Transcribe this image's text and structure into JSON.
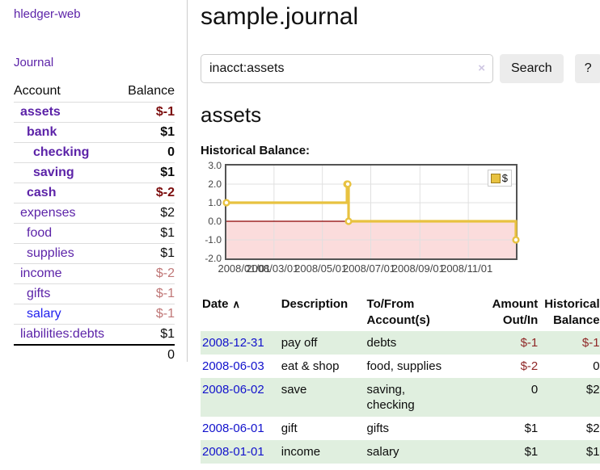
{
  "app": {
    "brand": "hledger-web",
    "nav_journal": "Journal"
  },
  "sidebar": {
    "header": {
      "account": "Account",
      "balance": "Balance"
    },
    "accounts": [
      {
        "name": "assets",
        "balance": "$-1",
        "indent": 0,
        "bold": true,
        "visited": true
      },
      {
        "name": "bank",
        "balance": "$1",
        "indent": 1,
        "bold": true,
        "visited": true
      },
      {
        "name": "checking",
        "balance": "0",
        "indent": 2,
        "bold": true,
        "visited": true
      },
      {
        "name": "saving",
        "balance": "$1",
        "indent": 2,
        "bold": true,
        "visited": true
      },
      {
        "name": "cash",
        "balance": "$-2",
        "indent": 1,
        "bold": true,
        "visited": true
      },
      {
        "name": "expenses",
        "balance": "$2",
        "indent": 0,
        "bold": false,
        "visited": true
      },
      {
        "name": "food",
        "balance": "$1",
        "indent": 1,
        "bold": false,
        "visited": true
      },
      {
        "name": "supplies",
        "balance": "$1",
        "indent": 1,
        "bold": false,
        "visited": true
      },
      {
        "name": "income",
        "balance": "$-2",
        "indent": 0,
        "bold": false,
        "visited": true
      },
      {
        "name": "gifts",
        "balance": "$-1",
        "indent": 1,
        "bold": false,
        "visited": true
      },
      {
        "name": "salary",
        "balance": "$-1",
        "indent": 1,
        "bold": false,
        "visited": false
      },
      {
        "name": "liabilities:debts",
        "balance": "$1",
        "indent": 0,
        "bold": false,
        "visited": true
      }
    ],
    "total": "0"
  },
  "header": {
    "title": "sample.journal"
  },
  "search": {
    "value": "inacct:assets",
    "clear_icon": "×",
    "button_label": "Search",
    "help_label": "?"
  },
  "account_page": {
    "heading": "assets",
    "chart_label": "Historical Balance:"
  },
  "chart_data": {
    "type": "line",
    "title": "Historical Balance:",
    "step": true,
    "x_range": [
      "2008-01-01",
      "2008-12-31"
    ],
    "y_range": [
      -2.0,
      3.0
    ],
    "y_tick_labels": [
      "3.0",
      "2.0",
      "1.0",
      "0.0",
      "-1.0",
      "-2.0"
    ],
    "y_ticks": [
      3,
      2,
      1,
      0,
      -1,
      -2
    ],
    "y_gridlines": [
      2,
      1,
      -1
    ],
    "x_tick_labels": [
      "2008/01/01",
      "2008/03/01",
      "2008/05/01",
      "2008/07/01",
      "2008/09/01",
      "2008/11/01"
    ],
    "x_tick_dates": [
      "2008-01-01",
      "2008-03-01",
      "2008-05-01",
      "2008-07-01",
      "2008-09-01",
      "2008-11-01"
    ],
    "series": [
      {
        "name": "$",
        "color": "#e8c240",
        "points": [
          [
            "2008-01-01",
            1
          ],
          [
            "2008-06-01",
            2
          ],
          [
            "2008-06-02",
            2
          ],
          [
            "2008-06-03",
            0
          ],
          [
            "2008-12-31",
            -1
          ]
        ]
      }
    ],
    "legend": [
      {
        "label": "$",
        "color": "#e8c240"
      }
    ],
    "legend_position": "top-right",
    "negative_region_fill": "#fbdcdc",
    "zero_line_color": "#8b0000",
    "grid_color": "#e0e0e0"
  },
  "register": {
    "sort_indicator": "∧",
    "columns": [
      {
        "key": "date",
        "line1": "Date",
        "line2": "",
        "align": "left"
      },
      {
        "key": "description",
        "line1": "Description",
        "line2": "",
        "align": "left"
      },
      {
        "key": "accounts",
        "line1": "To/From",
        "line2": "Account(s)",
        "align": "left"
      },
      {
        "key": "amount",
        "line1": "Amount",
        "line2": "Out/In",
        "align": "right"
      },
      {
        "key": "balance",
        "line1": "Historical",
        "line2": "Balance",
        "align": "right"
      }
    ],
    "rows": [
      {
        "date": "2008-12-31",
        "description": "pay off",
        "accounts": "debts",
        "amount": "$-1",
        "balance": "$-1"
      },
      {
        "date": "2008-06-03",
        "description": "eat & shop",
        "accounts": "food, supplies",
        "amount": "$-2",
        "balance": "0"
      },
      {
        "date": "2008-06-02",
        "description": "save",
        "accounts": "saving, checking",
        "amount": "0",
        "balance": "$2"
      },
      {
        "date": "2008-06-01",
        "description": "gift",
        "accounts": "gifts",
        "amount": "$1",
        "balance": "$2"
      },
      {
        "date": "2008-01-01",
        "description": "income",
        "accounts": "salary",
        "amount": "$1",
        "balance": "$1"
      }
    ]
  }
}
